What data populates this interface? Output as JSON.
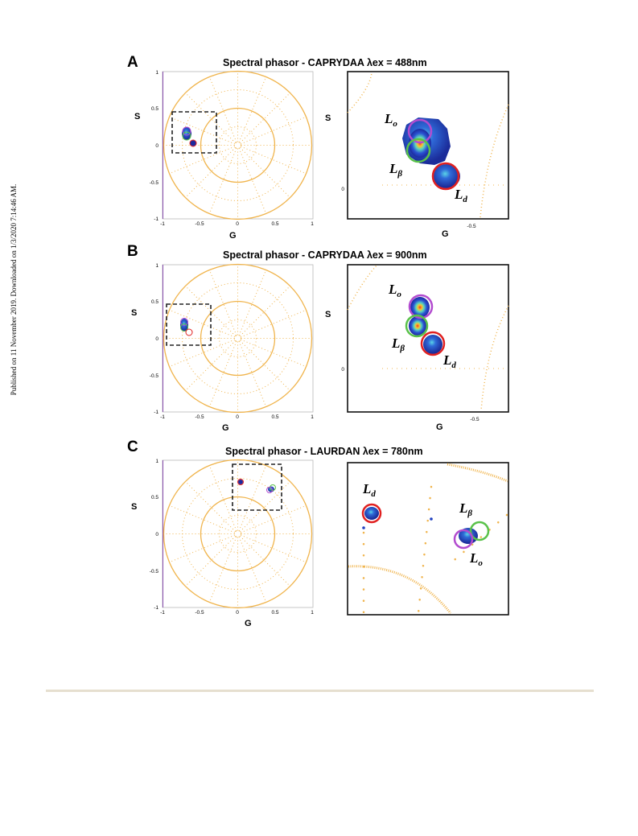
{
  "side_note": "Published on 11 November 2019. Downloaded on 1/3/2020 7:14:46 AM.",
  "colors": {
    "guide": "#f0b44c",
    "roi": "#222222",
    "lo": "#b24ccf",
    "lb": "#5ac24a",
    "ld": "#e02020",
    "blob": "#2040c0"
  },
  "panels": [
    {
      "id": "A",
      "title": "Spectral phasor - CAPRYDAA λex = 488nm",
      "ylabel": "S",
      "xlabel": "G",
      "left_xticks": [
        "-1",
        "-0.5",
        "0",
        "0.5",
        "1"
      ],
      "left_yticks": [
        "1",
        "0.5",
        "0",
        "-0.5",
        "-1"
      ],
      "zoom_xtick": "-0.5",
      "zoom_ytick": "0",
      "labels": {
        "lo": "L",
        "lo_sub": "o",
        "lb": "L",
        "lb_sub": "β",
        "ld": "L",
        "ld_sub": "d"
      }
    },
    {
      "id": "B",
      "title": "Spectral phasor - CAPRYDAA λex = 900nm",
      "ylabel": "S",
      "xlabel": "G",
      "left_xticks": [
        "-1",
        "-0.5",
        "0",
        "0.5",
        "1"
      ],
      "left_yticks": [
        "1",
        "0.5",
        "0",
        "-0.5",
        "-1"
      ],
      "zoom_xtick": "-0.5",
      "zoom_ytick": "0",
      "labels": {
        "lo": "L",
        "lo_sub": "o",
        "lb": "L",
        "lb_sub": "β",
        "ld": "L",
        "ld_sub": "d"
      }
    },
    {
      "id": "C",
      "title": "Spectral phasor - LAURDAN λex = 780nm",
      "ylabel": "S",
      "xlabel": "G",
      "left_xticks": [
        "-1",
        "-0.5",
        "0",
        "0.5",
        "1"
      ],
      "left_yticks": [
        "1",
        "0.5",
        "0",
        "-0.5",
        "-1"
      ],
      "zoom_xtick": "",
      "zoom_ytick": "",
      "labels": {
        "lo": "L",
        "lo_sub": "o",
        "lb": "L",
        "lb_sub": "β",
        "ld": "L",
        "ld_sub": "d"
      }
    }
  ]
}
